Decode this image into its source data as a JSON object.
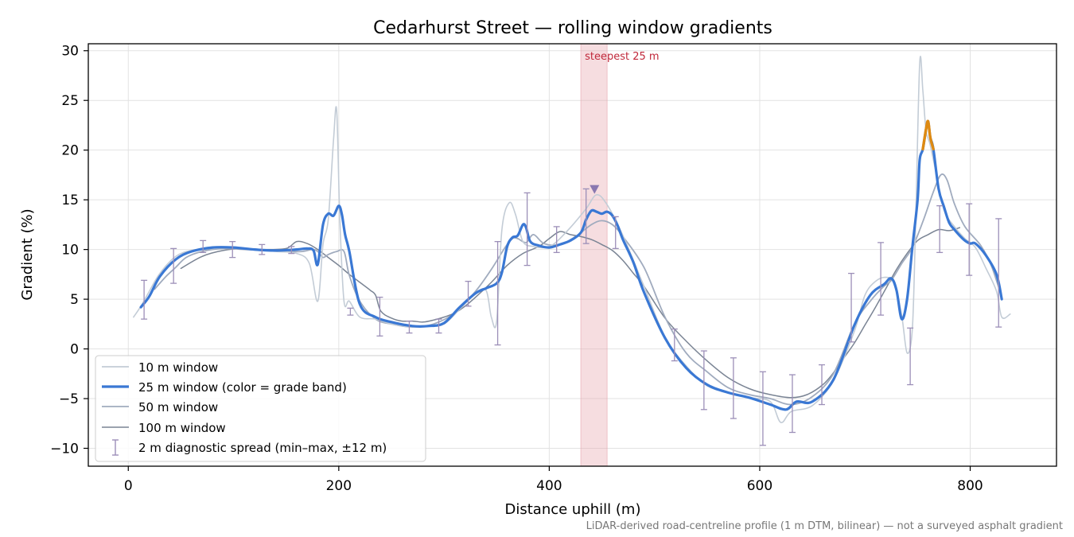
{
  "chart_data": {
    "type": "line",
    "title": "Cedarhurst Street — rolling window gradients",
    "xlabel": "Distance uphill (m)",
    "ylabel": "Gradient (%)",
    "xlim": [
      -38,
      882
    ],
    "ylim": [
      -11.8,
      30.7
    ],
    "xticks": [
      0,
      200,
      400,
      600,
      800
    ],
    "yticks": [
      -10,
      -5,
      0,
      5,
      10,
      15,
      20,
      25,
      30
    ],
    "xtick_labels": [
      "0",
      "200",
      "400",
      "600",
      "800"
    ],
    "ytick_labels": [
      "−10",
      "−5",
      "0",
      "5",
      "10",
      "15",
      "20",
      "25",
      "30"
    ],
    "grid": true,
    "legend_position": "lower-left",
    "footnote": "LiDAR-derived road-centreline profile (1 m DTM, bilinear) — not a surveyed asphalt gradient",
    "steepest_band": {
      "x_start": 430,
      "x_end": 455,
      "label": "steepest 25 m",
      "color": "#e8a6ae",
      "marker_x": 443,
      "marker_y": 16
    },
    "colors": {
      "low_grade": "#3a78d4",
      "high_grade": "#de8a12",
      "w10": "#c3ccd6",
      "w50": "#a0abbe",
      "w100": "#7a8494",
      "errorbar": "#9c8fb8",
      "marker": "#8a78b0"
    },
    "series": [
      {
        "name": "10 m window",
        "x": [
          5,
          12,
          20,
          30,
          45,
          60,
          80,
          100,
          120,
          140,
          160,
          172,
          180,
          185,
          190,
          195,
          198,
          201,
          205,
          210,
          220,
          235,
          250,
          270,
          285,
          300,
          315,
          330,
          340,
          345,
          350,
          355,
          362,
          368,
          375,
          385,
          395,
          405,
          420,
          435,
          445,
          455,
          470,
          490,
          510,
          530,
          550,
          570,
          590,
          610,
          620,
          630,
          650,
          670,
          690,
          700,
          710,
          720,
          728,
          735,
          740,
          745,
          748,
          752,
          755,
          758,
          762,
          768,
          775,
          785,
          795,
          805,
          815,
          825,
          830,
          838
        ],
        "y": [
          3.2,
          4.3,
          5.8,
          7.6,
          9.3,
          9.9,
          10.1,
          10.2,
          10.0,
          9.8,
          9.6,
          8.6,
          4.8,
          10.5,
          13,
          21,
          24,
          13,
          4.8,
          4.8,
          3.2,
          3.0,
          2.5,
          2.2,
          2.3,
          2.5,
          4,
          5.6,
          5.9,
          3.2,
          2.8,
          12,
          14.7,
          13.5,
          10.8,
          10.3,
          10.2,
          10.6,
          12.2,
          14.1,
          15.5,
          14.5,
          11.4,
          6.3,
          1.2,
          -1.7,
          -3.7,
          -4.4,
          -4.9,
          -5.3,
          -7.4,
          -6.3,
          -5.7,
          -3.2,
          1.8,
          5.4,
          6.8,
          7.2,
          6.6,
          3.3,
          -0.4,
          2,
          12,
          28.7,
          26,
          22,
          20.5,
          17.5,
          14,
          12.3,
          11.1,
          10.2,
          8.1,
          5.8,
          3.2,
          3.5
        ]
      },
      {
        "name": "25 m window (color = grade band)",
        "x": [
          12,
          20,
          30,
          45,
          60,
          80,
          100,
          120,
          140,
          160,
          170,
          176,
          180,
          185,
          190,
          195,
          200,
          203,
          206,
          210,
          220,
          235,
          250,
          270,
          285,
          300,
          315,
          330,
          340,
          350,
          355,
          360,
          365,
          370,
          375,
          378,
          382,
          390,
          400,
          410,
          420,
          430,
          435,
          440,
          445,
          450,
          455,
          460,
          465,
          470,
          480,
          490,
          510,
          530,
          550,
          570,
          590,
          610,
          625,
          635,
          650,
          670,
          690,
          705,
          718,
          725,
          730,
          735,
          740,
          745,
          750,
          752,
          755,
          758,
          760,
          762,
          765,
          770,
          775,
          780,
          785,
          790,
          795,
          800,
          805,
          815,
          825,
          830
        ],
        "y": [
          4.2,
          5.3,
          7.3,
          9.0,
          9.8,
          10.2,
          10.2,
          10.0,
          9.9,
          10.0,
          10.1,
          9.9,
          8.5,
          12.5,
          13.6,
          13.4,
          14.4,
          13.5,
          11.5,
          9.8,
          4.5,
          3.2,
          2.7,
          2.3,
          2.3,
          2.6,
          4.2,
          5.6,
          6.1,
          6.6,
          7.7,
          10.3,
          11.2,
          11.4,
          12.5,
          12.2,
          10.8,
          10.4,
          10.2,
          10.5,
          10.9,
          11.7,
          13.0,
          13.9,
          13.8,
          13.6,
          13.8,
          13.4,
          12.4,
          11.0,
          8.7,
          5.7,
          1.1,
          -1.9,
          -3.6,
          -4.4,
          -4.9,
          -5.6,
          -6.1,
          -5.3,
          -5.3,
          -3.1,
          2.4,
          5.4,
          6.5,
          7.1,
          5.9,
          3.0,
          5.0,
          10.2,
          15.0,
          19.0,
          20.1,
          22.1,
          22.9,
          21.3,
          20.1,
          16.1,
          14.3,
          12.7,
          12.0,
          11.4,
          10.9,
          10.6,
          10.6,
          9.4,
          7.5,
          5.0
        ],
        "segments": [
          {
            "band": "high",
            "x": [
              755,
              758,
              760,
              762,
              765
            ],
            "y": [
              20.1,
              22.1,
              22.9,
              21.3,
              20.1
            ]
          }
        ]
      },
      {
        "name": "50 m window",
        "x": [
          25,
          35,
          45,
          55,
          70,
          90,
          110,
          130,
          150,
          165,
          175,
          180,
          185,
          190,
          198,
          205,
          210,
          220,
          235,
          250,
          270,
          290,
          310,
          330,
          345,
          358,
          365,
          370,
          378,
          385,
          395,
          410,
          425,
          440,
          450,
          460,
          470,
          490,
          510,
          530,
          550,
          570,
          590,
          610,
          630,
          650,
          670,
          690,
          705,
          718,
          725,
          735,
          745,
          755,
          765,
          772,
          778,
          785,
          795,
          810,
          820,
          830
        ],
        "y": [
          6.0,
          7.2,
          8.2,
          9.2,
          9.8,
          10.1,
          10.0,
          9.9,
          9.8,
          9.8,
          10.0,
          9.8,
          9.2,
          9.5,
          9.8,
          9.8,
          7.4,
          4.8,
          3.0,
          2.5,
          2.2,
          2.5,
          3.6,
          5.8,
          8.0,
          10.2,
          11.1,
          11.1,
          10.7,
          11.5,
          10.6,
          10.5,
          11.3,
          12.5,
          12.9,
          12.5,
          11.3,
          8.2,
          3.2,
          -0.4,
          -2.3,
          -3.9,
          -4.6,
          -5.0,
          -5.6,
          -4.8,
          -2.5,
          2.5,
          4.8,
          6.3,
          6.9,
          8.6,
          10.2,
          12.8,
          15.8,
          17.5,
          17.0,
          14.6,
          12.3,
          10.4,
          8.4,
          5.2
        ]
      },
      {
        "name": "100 m window",
        "x": [
          50,
          70,
          90,
          110,
          130,
          150,
          160,
          170,
          180,
          190,
          200,
          210,
          220,
          230,
          235,
          240,
          250,
          260,
          270,
          280,
          290,
          300,
          310,
          320,
          330,
          345,
          360,
          375,
          390,
          400,
          410,
          420,
          430,
          440,
          450,
          460,
          470,
          480,
          490,
          510,
          530,
          550,
          570,
          590,
          610,
          630,
          645,
          660,
          670,
          680,
          690,
          700,
          710,
          720,
          730,
          740,
          750,
          760,
          770,
          780,
          790
        ],
        "y": [
          8.1,
          9.3,
          9.9,
          10.1,
          10.0,
          10.1,
          10.8,
          10.6,
          10.0,
          9.2,
          8.4,
          7.5,
          6.7,
          5.9,
          5.4,
          3.8,
          3.1,
          2.8,
          2.8,
          2.7,
          2.9,
          3.2,
          3.6,
          4.3,
          5.2,
          6.7,
          8.4,
          9.6,
          10.3,
          11.1,
          11.8,
          11.5,
          11.3,
          11.0,
          10.5,
          9.9,
          8.9,
          7.6,
          6.3,
          3.1,
          0.8,
          -1.2,
          -2.9,
          -4.0,
          -4.6,
          -4.9,
          -4.6,
          -3.6,
          -2.4,
          -0.9,
          0.6,
          2.4,
          4.2,
          6.1,
          8.0,
          9.6,
          10.9,
          11.5,
          12.0,
          11.9,
          12.2
        ]
      }
    ],
    "errorbars": {
      "name": "2 m diagnostic spread (min–max, ±12 m)",
      "points": [
        {
          "x": 15,
          "min": 3.0,
          "max": 6.9
        },
        {
          "x": 43,
          "min": 6.6,
          "max": 10.1
        },
        {
          "x": 71,
          "min": 9.7,
          "max": 10.9
        },
        {
          "x": 99,
          "min": 9.2,
          "max": 10.8
        },
        {
          "x": 127,
          "min": 9.5,
          "max": 10.5
        },
        {
          "x": 155,
          "min": 9.6,
          "max": 10.3
        },
        {
          "x": 211,
          "min": 3.4,
          "max": 4.1
        },
        {
          "x": 239,
          "min": 1.3,
          "max": 5.2
        },
        {
          "x": 267,
          "min": 1.6,
          "max": 2.8
        },
        {
          "x": 295,
          "min": 1.6,
          "max": 3.0
        },
        {
          "x": 323,
          "min": 4.3,
          "max": 6.8
        },
        {
          "x": 351,
          "min": 0.4,
          "max": 10.8
        },
        {
          "x": 379,
          "min": 8.4,
          "max": 15.7
        },
        {
          "x": 407,
          "min": 9.7,
          "max": 12.3
        },
        {
          "x": 435,
          "min": 10.6,
          "max": 16.1
        },
        {
          "x": 463,
          "min": 10.1,
          "max": 13.3
        },
        {
          "x": 519,
          "min": -1.2,
          "max": 2.0
        },
        {
          "x": 547,
          "min": -6.1,
          "max": -0.2
        },
        {
          "x": 575,
          "min": -7.0,
          "max": -0.9
        },
        {
          "x": 603,
          "min": -9.7,
          "max": -2.3
        },
        {
          "x": 631,
          "min": -8.4,
          "max": -2.6
        },
        {
          "x": 659,
          "min": -5.6,
          "max": -1.6
        },
        {
          "x": 687,
          "min": 0.7,
          "max": 7.6
        },
        {
          "x": 715,
          "min": 3.4,
          "max": 10.7
        },
        {
          "x": 743,
          "min": -3.6,
          "max": 2.1
        },
        {
          "x": 771,
          "min": 9.7,
          "max": 14.4
        },
        {
          "x": 799,
          "min": 7.4,
          "max": 14.6
        },
        {
          "x": 827,
          "min": 2.2,
          "max": 13.1
        }
      ]
    }
  }
}
